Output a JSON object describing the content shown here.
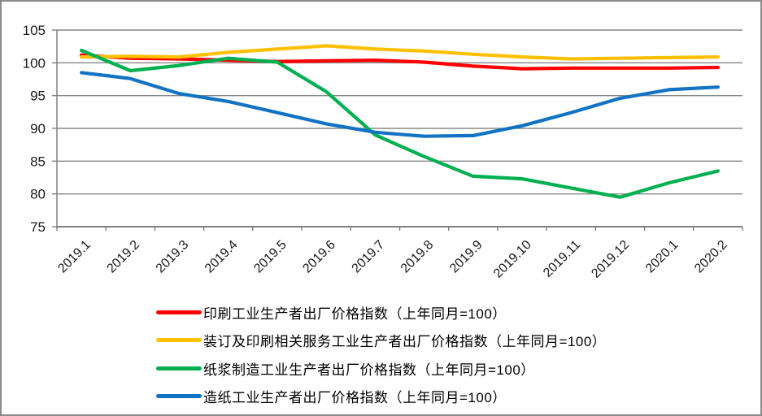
{
  "chart_data": {
    "type": "line",
    "title": "",
    "xlabel": "",
    "ylabel": "",
    "categories": [
      "2019.1",
      "2019.2",
      "2019.3",
      "2019.4",
      "2019.5",
      "2019.6",
      "2019.7",
      "2019.8",
      "2019.9",
      "2019.10",
      "2019.11",
      "2019.12",
      "2020.1",
      "2020.2"
    ],
    "series": [
      {
        "name": "印刷工业生产者出厂价格指数（上年同月=100）",
        "color": "#FF0000",
        "values": [
          101.2,
          100.7,
          100.6,
          100.4,
          100.2,
          100.3,
          100.4,
          100.1,
          99.5,
          99.1,
          99.2,
          99.2,
          99.2,
          99.3
        ]
      },
      {
        "name": "装订及印刷相关服务工业生产者出厂价格指数（上年同月=100）",
        "color": "#FFC000",
        "values": [
          100.9,
          101.0,
          100.9,
          101.6,
          102.1,
          102.6,
          102.1,
          101.8,
          101.3,
          100.9,
          100.6,
          100.7,
          100.8,
          100.9
        ]
      },
      {
        "name": "纸浆制造工业生产者出厂价格指数（上年同月=100）",
        "color": "#00B050",
        "values": [
          101.9,
          98.8,
          99.6,
          100.7,
          100.1,
          95.6,
          89.0,
          85.7,
          82.7,
          82.3,
          80.9,
          79.5,
          81.7,
          83.5
        ]
      },
      {
        "name": "造纸工业生产者出厂价格指数（上年同月=100）",
        "color": "#1273C4",
        "values": [
          98.5,
          97.6,
          95.3,
          94.1,
          92.4,
          90.7,
          89.4,
          88.8,
          88.9,
          90.4,
          92.4,
          94.6,
          95.9,
          96.3
        ]
      }
    ],
    "ylim": [
      75,
      105
    ],
    "ytick_step": 5,
    "ytick_labels": [
      "75",
      "80",
      "85",
      "90",
      "95",
      "100",
      "105"
    ],
    "grid": "horizontal",
    "gridline_color": "#878787",
    "axis_color": "#808080",
    "legend_position": "bottom-left"
  }
}
